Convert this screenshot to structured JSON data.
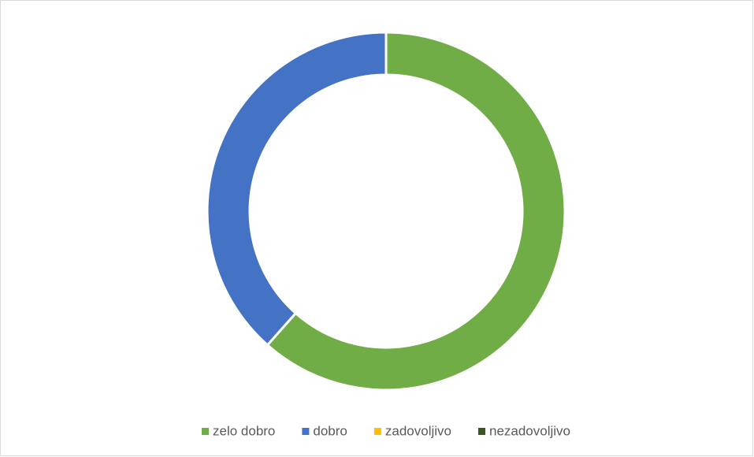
{
  "chart_data": {
    "type": "donut",
    "categories": [
      "zelo dobro",
      "dobro",
      "zadovoljivo",
      "nezadovoljivo"
    ],
    "values": [
      8,
      5,
      0,
      0
    ],
    "colors": [
      "#70ad47",
      "#4472c4",
      "#ffc000",
      "#375623"
    ],
    "legend": "bottom"
  }
}
